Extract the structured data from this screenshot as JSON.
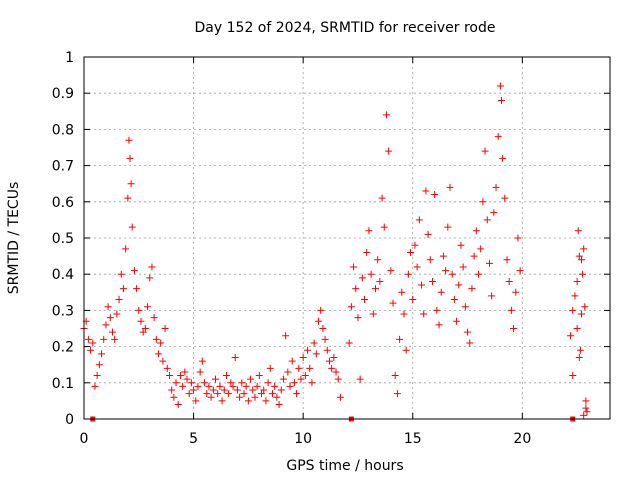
{
  "chart_data": {
    "type": "scatter",
    "title": "Day 152 of 2024, SRMTID for receiver rode",
    "xlabel": "GPS time / hours",
    "ylabel": "SRMTID / TECUs",
    "xlim": [
      0,
      24
    ],
    "ylim": [
      0,
      1
    ],
    "grid": true,
    "x_ticks": [
      0,
      5,
      10,
      15,
      20
    ],
    "x_tick_labels": [
      "0",
      "5",
      "10",
      "15",
      "20"
    ],
    "y_ticks": [
      0,
      0.1,
      0.2,
      0.3,
      0.4,
      0.5,
      0.6,
      0.7,
      0.8,
      0.9,
      1
    ],
    "y_tick_labels": [
      "0",
      "0.1",
      "0.2",
      "0.3",
      "0.4",
      "0.5",
      "0.6",
      "0.7",
      "0.8",
      "0.9",
      "1"
    ],
    "marker_color": "#ff0000",
    "marker": "plus",
    "legend": "none",
    "series": [
      {
        "name": "SRMTID",
        "points": [
          [
            0.0,
            0.25
          ],
          [
            0.1,
            0.27
          ],
          [
            0.2,
            0.22
          ],
          [
            0.3,
            0.19
          ],
          [
            0.4,
            0.21
          ],
          [
            0.5,
            0.09
          ],
          [
            0.6,
            0.12
          ],
          [
            0.7,
            0.15
          ],
          [
            0.8,
            0.18
          ],
          [
            0.9,
            0.22
          ],
          [
            1.0,
            0.26
          ],
          [
            1.1,
            0.31
          ],
          [
            1.2,
            0.28
          ],
          [
            1.3,
            0.24
          ],
          [
            1.4,
            0.22
          ],
          [
            1.5,
            0.29
          ],
          [
            1.6,
            0.33
          ],
          [
            1.7,
            0.4
          ],
          [
            1.8,
            0.36
          ],
          [
            1.9,
            0.47
          ],
          [
            2.0,
            0.61
          ],
          [
            2.05,
            0.77
          ],
          [
            2.1,
            0.72
          ],
          [
            2.15,
            0.65
          ],
          [
            2.2,
            0.53
          ],
          [
            2.3,
            0.41
          ],
          [
            2.4,
            0.36
          ],
          [
            2.5,
            0.3
          ],
          [
            2.6,
            0.27
          ],
          [
            2.7,
            0.24
          ],
          [
            2.8,
            0.25
          ],
          [
            2.9,
            0.31
          ],
          [
            3.0,
            0.39
          ],
          [
            3.1,
            0.42
          ],
          [
            3.2,
            0.28
          ],
          [
            3.3,
            0.22
          ],
          [
            3.4,
            0.18
          ],
          [
            3.5,
            0.21
          ],
          [
            3.6,
            0.16
          ],
          [
            3.7,
            0.25
          ],
          [
            3.8,
            0.14
          ],
          [
            3.9,
            0.12
          ],
          [
            4.0,
            0.08
          ],
          [
            4.1,
            0.06
          ],
          [
            4.2,
            0.1
          ],
          [
            4.3,
            0.04
          ],
          [
            4.4,
            0.12
          ],
          [
            4.5,
            0.09
          ],
          [
            4.6,
            0.13
          ],
          [
            4.7,
            0.11
          ],
          [
            4.8,
            0.07
          ],
          [
            4.9,
            0.1
          ],
          [
            5.0,
            0.08
          ],
          [
            5.1,
            0.05
          ],
          [
            5.2,
            0.09
          ],
          [
            5.3,
            0.13
          ],
          [
            5.4,
            0.16
          ],
          [
            5.5,
            0.1
          ],
          [
            5.6,
            0.07
          ],
          [
            5.7,
            0.09
          ],
          [
            5.8,
            0.06
          ],
          [
            5.9,
            0.08
          ],
          [
            6.0,
            0.11
          ],
          [
            6.1,
            0.07
          ],
          [
            6.2,
            0.09
          ],
          [
            6.3,
            0.05
          ],
          [
            6.4,
            0.08
          ],
          [
            6.5,
            0.12
          ],
          [
            6.6,
            0.07
          ],
          [
            6.7,
            0.1
          ],
          [
            6.8,
            0.09
          ],
          [
            6.9,
            0.17
          ],
          [
            7.0,
            0.08
          ],
          [
            7.1,
            0.06
          ],
          [
            7.2,
            0.1
          ],
          [
            7.3,
            0.07
          ],
          [
            7.4,
            0.09
          ],
          [
            7.5,
            0.05
          ],
          [
            7.6,
            0.11
          ],
          [
            7.7,
            0.08
          ],
          [
            7.8,
            0.06
          ],
          [
            7.9,
            0.09
          ],
          [
            8.0,
            0.12
          ],
          [
            8.1,
            0.07
          ],
          [
            8.2,
            0.08
          ],
          [
            8.3,
            0.05
          ],
          [
            8.4,
            0.1
          ],
          [
            8.5,
            0.14
          ],
          [
            8.6,
            0.07
          ],
          [
            8.7,
            0.09
          ],
          [
            8.8,
            0.06
          ],
          [
            8.9,
            0.04
          ],
          [
            9.0,
            0.08
          ],
          [
            9.1,
            0.11
          ],
          [
            9.2,
            0.23
          ],
          [
            9.3,
            0.13
          ],
          [
            9.4,
            0.09
          ],
          [
            9.5,
            0.16
          ],
          [
            9.6,
            0.1
          ],
          [
            9.7,
            0.07
          ],
          [
            9.8,
            0.14
          ],
          [
            9.9,
            0.11
          ],
          [
            10.0,
            0.17
          ],
          [
            10.1,
            0.12
          ],
          [
            10.2,
            0.19
          ],
          [
            10.3,
            0.14
          ],
          [
            10.4,
            0.1
          ],
          [
            10.5,
            0.21
          ],
          [
            10.6,
            0.18
          ],
          [
            10.7,
            0.27
          ],
          [
            10.8,
            0.3
          ],
          [
            10.9,
            0.25
          ],
          [
            11.0,
            0.22
          ],
          [
            11.1,
            0.19
          ],
          [
            11.2,
            0.16
          ],
          [
            11.3,
            0.14
          ],
          [
            11.4,
            0.17
          ],
          [
            11.5,
            0.13
          ],
          [
            11.6,
            0.11
          ],
          [
            11.7,
            0.06
          ],
          [
            12.1,
            0.21
          ],
          [
            12.2,
            0.31
          ],
          [
            12.3,
            0.42
          ],
          [
            12.4,
            0.36
          ],
          [
            12.5,
            0.28
          ],
          [
            12.6,
            0.11
          ],
          [
            12.7,
            0.39
          ],
          [
            12.8,
            0.33
          ],
          [
            12.9,
            0.46
          ],
          [
            13.0,
            0.52
          ],
          [
            13.1,
            0.4
          ],
          [
            13.2,
            0.29
          ],
          [
            13.3,
            0.36
          ],
          [
            13.4,
            0.44
          ],
          [
            13.5,
            0.38
          ],
          [
            13.6,
            0.61
          ],
          [
            13.7,
            0.53
          ],
          [
            13.8,
            0.84
          ],
          [
            13.9,
            0.74
          ],
          [
            14.0,
            0.41
          ],
          [
            14.1,
            0.32
          ],
          [
            14.2,
            0.12
          ],
          [
            14.3,
            0.07
          ],
          [
            14.4,
            0.22
          ],
          [
            14.5,
            0.35
          ],
          [
            14.6,
            0.29
          ],
          [
            14.7,
            0.19
          ],
          [
            14.8,
            0.4
          ],
          [
            14.9,
            0.46
          ],
          [
            15.0,
            0.33
          ],
          [
            15.1,
            0.48
          ],
          [
            15.2,
            0.42
          ],
          [
            15.3,
            0.55
          ],
          [
            15.4,
            0.37
          ],
          [
            15.5,
            0.29
          ],
          [
            15.6,
            0.63
          ],
          [
            15.7,
            0.51
          ],
          [
            15.8,
            0.44
          ],
          [
            15.9,
            0.38
          ],
          [
            16.0,
            0.62
          ],
          [
            16.1,
            0.3
          ],
          [
            16.2,
            0.26
          ],
          [
            16.3,
            0.35
          ],
          [
            16.4,
            0.45
          ],
          [
            16.5,
            0.41
          ],
          [
            16.6,
            0.53
          ],
          [
            16.7,
            0.64
          ],
          [
            16.8,
            0.4
          ],
          [
            16.9,
            0.33
          ],
          [
            17.0,
            0.27
          ],
          [
            17.1,
            0.37
          ],
          [
            17.2,
            0.48
          ],
          [
            17.3,
            0.42
          ],
          [
            17.4,
            0.31
          ],
          [
            17.5,
            0.24
          ],
          [
            17.6,
            0.21
          ],
          [
            17.7,
            0.36
          ],
          [
            17.8,
            0.45
          ],
          [
            17.9,
            0.52
          ],
          [
            18.0,
            0.4
          ],
          [
            18.1,
            0.47
          ],
          [
            18.2,
            0.6
          ],
          [
            18.3,
            0.74
          ],
          [
            18.4,
            0.55
          ],
          [
            18.5,
            0.43
          ],
          [
            18.6,
            0.34
          ],
          [
            18.7,
            0.57
          ],
          [
            18.8,
            0.64
          ],
          [
            18.9,
            0.78
          ],
          [
            19.0,
            0.92
          ],
          [
            19.05,
            0.88
          ],
          [
            19.1,
            0.72
          ],
          [
            19.2,
            0.61
          ],
          [
            19.3,
            0.44
          ],
          [
            19.4,
            0.38
          ],
          [
            19.5,
            0.3
          ],
          [
            19.6,
            0.25
          ],
          [
            19.7,
            0.35
          ],
          [
            19.8,
            0.5
          ],
          [
            19.9,
            0.41
          ],
          [
            22.2,
            0.23
          ],
          [
            22.3,
            0.3
          ],
          [
            22.4,
            0.34
          ],
          [
            22.5,
            0.25
          ],
          [
            22.55,
            0.52
          ],
          [
            22.6,
            0.45
          ],
          [
            22.65,
            0.19
          ],
          [
            22.7,
            0.29
          ],
          [
            22.75,
            0.4
          ],
          [
            22.8,
            0.47
          ],
          [
            22.85,
            0.31
          ],
          [
            22.6,
            0.17
          ],
          [
            22.5,
            0.38
          ],
          [
            22.3,
            0.12
          ],
          [
            22.9,
            0.05
          ],
          [
            22.95,
            0.02
          ],
          [
            22.9,
            0.03
          ],
          [
            22.8,
            0.01
          ],
          [
            22.7,
            0.44
          ]
        ]
      }
    ],
    "missing_data_marks_x": [
      0.4,
      12.2,
      22.3
    ]
  }
}
